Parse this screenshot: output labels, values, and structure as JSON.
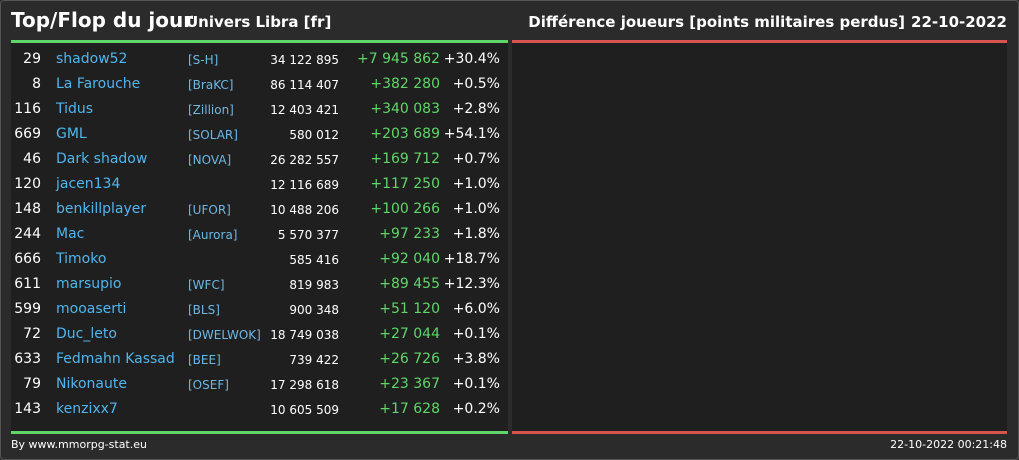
{
  "header": {
    "title": "Top/Flop du jour",
    "universe": "Univers Libra [fr]",
    "criterion": "Différence joueurs [points militaires perdus]",
    "date": "22-10-2022"
  },
  "colors": {
    "background": "#2b2b2b",
    "panel": "#1f1f1f",
    "top_bar": "#5fd66a",
    "flop_bar": "#d9534f",
    "player_link": "#4fb6f0",
    "positive": "#5fd66a"
  },
  "top": {
    "rows": [
      {
        "rank": "29",
        "name": "shadow52",
        "alliance": "[S-H]",
        "points": "34 122 895",
        "diff": "+7 945 862",
        "pct": "+30.4%"
      },
      {
        "rank": "8",
        "name": "La Farouche",
        "alliance": "[BraKC]",
        "points": "86 114 407",
        "diff": "+382 280",
        "pct": "+0.5%"
      },
      {
        "rank": "116",
        "name": "Tidus",
        "alliance": "[Zillion]",
        "points": "12 403 421",
        "diff": "+340 083",
        "pct": "+2.8%"
      },
      {
        "rank": "669",
        "name": "GML",
        "alliance": "[SOLAR]",
        "points": "580 012",
        "diff": "+203 689",
        "pct": "+54.1%"
      },
      {
        "rank": "46",
        "name": "Dark shadow",
        "alliance": "[NOVA]",
        "points": "26 282 557",
        "diff": "+169 712",
        "pct": "+0.7%"
      },
      {
        "rank": "120",
        "name": "jacen134",
        "alliance": "",
        "points": "12 116 689",
        "diff": "+117 250",
        "pct": "+1.0%"
      },
      {
        "rank": "148",
        "name": "benkillplayer",
        "alliance": "[UFOR]",
        "points": "10 488 206",
        "diff": "+100 266",
        "pct": "+1.0%"
      },
      {
        "rank": "244",
        "name": "Mac",
        "alliance": "[Aurora]",
        "points": "5 570 377",
        "diff": "+97 233",
        "pct": "+1.8%"
      },
      {
        "rank": "666",
        "name": "Timoko",
        "alliance": "",
        "points": "585 416",
        "diff": "+92 040",
        "pct": "+18.7%"
      },
      {
        "rank": "611",
        "name": "marsupio",
        "alliance": "[WFC]",
        "points": "819 983",
        "diff": "+89 455",
        "pct": "+12.3%"
      },
      {
        "rank": "599",
        "name": "mooaserti",
        "alliance": "[BLS]",
        "points": "900 348",
        "diff": "+51 120",
        "pct": "+6.0%"
      },
      {
        "rank": "72",
        "name": "Duc_leto",
        "alliance": "[DWELWOK]",
        "points": "18 749 038",
        "diff": "+27 044",
        "pct": "+0.1%"
      },
      {
        "rank": "633",
        "name": "Fedmahn Kassad",
        "alliance": "[BEE]",
        "points": "739 422",
        "diff": "+26 726",
        "pct": "+3.8%"
      },
      {
        "rank": "79",
        "name": "Nikonaute",
        "alliance": "[OSEF]",
        "points": "17 298 618",
        "diff": "+23 367",
        "pct": "+0.1%"
      },
      {
        "rank": "143",
        "name": "kenzixx7",
        "alliance": "",
        "points": "10 605 509",
        "diff": "+17 628",
        "pct": "+0.2%"
      }
    ]
  },
  "footer": {
    "credit": "By www.mmorpg-stat.eu",
    "timestamp": "22-10-2022 00:21:48"
  }
}
